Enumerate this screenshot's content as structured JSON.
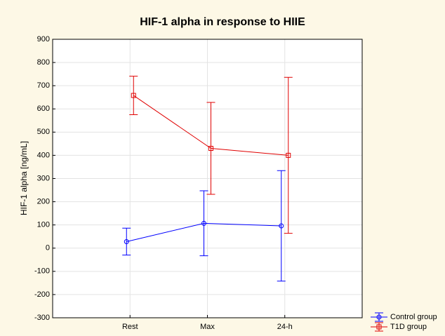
{
  "chart_data": {
    "type": "line",
    "title": "HIF-1 alpha in response to HIIE",
    "ylabel": "HIF-1 alpha [ng/mL]",
    "categories": [
      "Rest",
      "Max",
      "24-h"
    ],
    "series": [
      {
        "name": "Control group",
        "color": "#0000ff",
        "marker": "circle",
        "values": [
          28,
          107,
          96
        ],
        "errors": [
          58,
          140,
          238
        ]
      },
      {
        "name": "T1D group",
        "color": "#e00000",
        "marker": "square",
        "values": [
          658,
          430,
          400
        ],
        "errors": [
          83,
          198,
          336
        ]
      }
    ],
    "ylim": [
      -300,
      900
    ],
    "yticks": [
      -300,
      -200,
      -100,
      0,
      100,
      200,
      300,
      400,
      500,
      600,
      700,
      800,
      900
    ],
    "grid": true,
    "legend": "bottom-right"
  }
}
